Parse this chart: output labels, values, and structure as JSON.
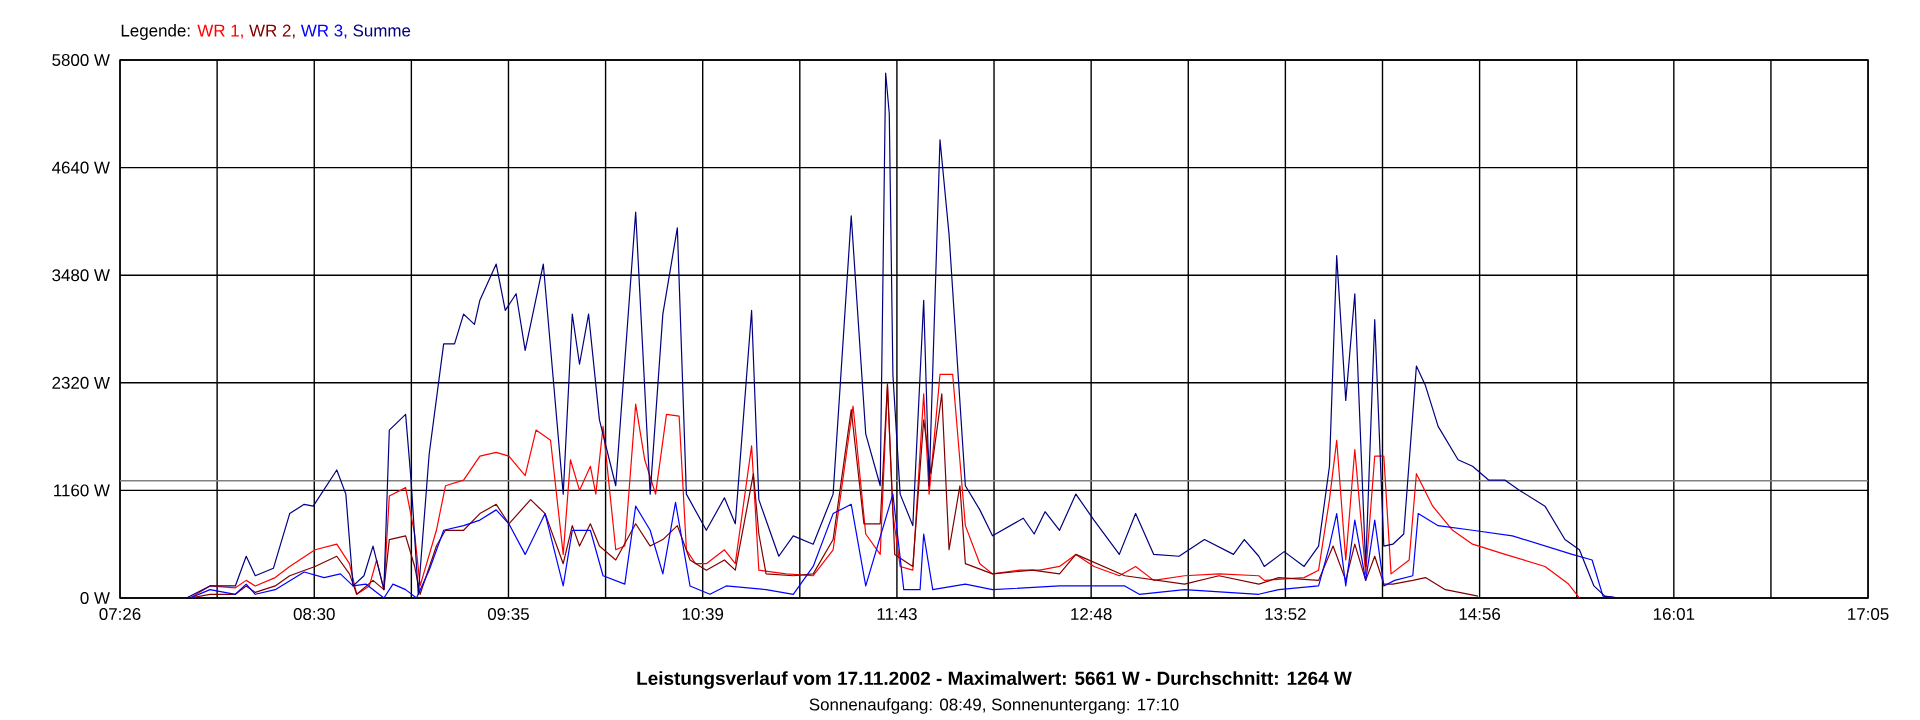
{
  "chart_data": {
    "type": "line",
    "title": "Leistungsverlauf vom 17.11.2002 - Maximalwert: 5661 W - Durchschnitt: 1264 W",
    "subtitle": "Sonnenaufgang: 08:49, Sonnenuntergang: 17:10",
    "legend_title": "Legende:",
    "legend": "top left",
    "grid": true,
    "marker": "none",
    "line_style": "solid",
    "xlim": [
      7.4333,
      17.0833
    ],
    "ylim": [
      0,
      5800
    ],
    "xticks": [
      {
        "value": 7.4333,
        "label": "07:26"
      },
      {
        "value": 7.9694,
        "label": null
      },
      {
        "value": 8.5056,
        "label": "08:30"
      },
      {
        "value": 9.0417,
        "label": null
      },
      {
        "value": 9.5778,
        "label": "09:35"
      },
      {
        "value": 10.1139,
        "label": null
      },
      {
        "value": 10.65,
        "label": "10:39"
      },
      {
        "value": 11.1861,
        "label": null
      },
      {
        "value": 11.7222,
        "label": "11:43"
      },
      {
        "value": 12.2583,
        "label": null
      },
      {
        "value": 12.7944,
        "label": "12:48"
      },
      {
        "value": 13.3306,
        "label": null
      },
      {
        "value": 13.8667,
        "label": "13:52"
      },
      {
        "value": 14.4028,
        "label": null
      },
      {
        "value": 14.9389,
        "label": "14:56"
      },
      {
        "value": 15.475,
        "label": null
      },
      {
        "value": 16.0111,
        "label": "16:01"
      },
      {
        "value": 16.5472,
        "label": null
      },
      {
        "value": 17.0833,
        "label": "17:05"
      }
    ],
    "yticks": [
      {
        "value": 0,
        "label": "0 W"
      },
      {
        "value": 1160,
        "label": "1160 W"
      },
      {
        "value": 2320,
        "label": "2320 W"
      },
      {
        "value": 3480,
        "label": "3480 W"
      },
      {
        "value": 4640,
        "label": "4640 W"
      },
      {
        "value": 5800,
        "label": "5800 W"
      }
    ],
    "ref_lines": [
      {
        "axis": "y",
        "value": 1264,
        "color": "#808080"
      }
    ],
    "series": [
      {
        "name": "WR 1,",
        "color": "#ff0000",
        "x": [
          7.82,
          7.93,
          8.07,
          8.13,
          8.18,
          8.29,
          8.37,
          8.51,
          8.63,
          8.7,
          8.74,
          8.81,
          8.85,
          8.89,
          8.92,
          9.01,
          9.06,
          9.09,
          9.18,
          9.23,
          9.33,
          9.42,
          9.51,
          9.58,
          9.67,
          9.73,
          9.81,
          9.88,
          9.92,
          9.97,
          10.03,
          10.06,
          10.1,
          10.17,
          10.22,
          10.28,
          10.33,
          10.39,
          10.45,
          10.52,
          10.56,
          10.61,
          10.67,
          10.77,
          10.83,
          10.92,
          10.96,
          11.11,
          11.26,
          11.37,
          11.48,
          11.55,
          11.63,
          11.67,
          11.7,
          11.74,
          11.81,
          11.87,
          11.9,
          11.96,
          12.03,
          12.1,
          12.18,
          12.25,
          12.4,
          12.51,
          12.62,
          12.71,
          12.81,
          12.95,
          13.04,
          13.14,
          13.31,
          13.5,
          13.72,
          13.75,
          13.97,
          14.05,
          14.11,
          14.15,
          14.2,
          14.25,
          14.31,
          14.36,
          14.41,
          14.45,
          14.55,
          14.59,
          14.68,
          14.79,
          14.9,
          15.08,
          15.3,
          15.43,
          15.49
        ],
        "values": [
          0,
          130,
          110,
          190,
          130,
          220,
          340,
          520,
          580,
          370,
          40,
          130,
          410,
          90,
          1100,
          1190,
          690,
          130,
          730,
          1210,
          1270,
          1530,
          1570,
          1530,
          1320,
          1810,
          1700,
          470,
          1490,
          1160,
          1420,
          1120,
          1850,
          520,
          560,
          2090,
          1490,
          1120,
          1980,
          1960,
          520,
          370,
          370,
          520,
          370,
          1640,
          300,
          260,
          240,
          520,
          2070,
          690,
          470,
          2290,
          910,
          340,
          300,
          2200,
          1120,
          2410,
          2410,
          780,
          370,
          260,
          300,
          300,
          340,
          470,
          340,
          240,
          340,
          190,
          240,
          260,
          240,
          190,
          220,
          300,
          1060,
          1700,
          410,
          1600,
          260,
          1530,
          1530,
          260,
          410,
          1340,
          990,
          730,
          580,
          470,
          340,
          150,
          0
        ]
      },
      {
        "name": "WR 2,",
        "color": "#800000",
        "x": [
          7.82,
          7.93,
          8.07,
          8.13,
          8.18,
          8.29,
          8.37,
          8.51,
          8.63,
          8.7,
          8.74,
          8.83,
          8.89,
          8.92,
          9.01,
          9.06,
          9.09,
          9.18,
          9.23,
          9.33,
          9.42,
          9.51,
          9.58,
          9.7,
          9.78,
          9.88,
          9.93,
          9.97,
          10.03,
          10.08,
          10.17,
          10.28,
          10.36,
          10.43,
          10.51,
          10.58,
          10.67,
          10.77,
          10.83,
          10.93,
          10.96,
          11.0,
          11.15,
          11.26,
          11.37,
          11.47,
          11.54,
          11.63,
          11.67,
          11.71,
          11.81,
          11.87,
          11.91,
          11.97,
          12.01,
          12.07,
          12.1,
          12.25,
          12.47,
          12.62,
          12.71,
          12.98,
          13.31,
          13.5,
          13.72,
          13.83,
          14.05,
          14.13,
          14.2,
          14.25,
          14.31,
          14.36,
          14.41,
          14.46,
          14.57,
          14.64,
          14.75,
          14.93
        ],
        "values": [
          0,
          40,
          40,
          130,
          60,
          130,
          240,
          340,
          450,
          260,
          40,
          190,
          90,
          630,
          670,
          340,
          40,
          560,
          730,
          730,
          910,
          1010,
          800,
          1060,
          910,
          370,
          780,
          560,
          800,
          560,
          410,
          800,
          560,
          630,
          780,
          410,
          300,
          410,
          300,
          1340,
          690,
          260,
          240,
          260,
          630,
          2030,
          800,
          800,
          2310,
          470,
          340,
          1920,
          1340,
          2200,
          520,
          1210,
          370,
          260,
          300,
          260,
          470,
          240,
          150,
          240,
          150,
          220,
          190,
          560,
          190,
          580,
          190,
          450,
          150,
          150,
          190,
          220,
          90,
          20
        ]
      },
      {
        "name": "WR 3,",
        "color": "#0000ff",
        "x": [
          7.82,
          7.93,
          8.07,
          8.13,
          8.18,
          8.29,
          8.45,
          8.56,
          8.65,
          8.72,
          8.79,
          8.89,
          8.94,
          9.01,
          9.07,
          9.14,
          9.22,
          9.33,
          9.42,
          9.51,
          9.58,
          9.67,
          9.78,
          9.88,
          9.93,
          10.03,
          10.1,
          10.22,
          10.28,
          10.36,
          10.43,
          10.5,
          10.58,
          10.69,
          10.78,
          11.0,
          11.15,
          11.26,
          11.37,
          11.47,
          11.55,
          11.7,
          11.76,
          11.85,
          11.87,
          11.92,
          12.1,
          12.25,
          12.62,
          12.98,
          13.06,
          13.31,
          13.72,
          13.83,
          14.05,
          14.11,
          14.15,
          14.2,
          14.25,
          14.31,
          14.36,
          14.41,
          14.47,
          14.57,
          14.6,
          14.71,
          14.9,
          15.12,
          15.45,
          15.56,
          15.62,
          15.71
        ],
        "values": [
          0,
          90,
          40,
          150,
          40,
          90,
          280,
          220,
          260,
          130,
          150,
          0,
          150,
          90,
          0,
          300,
          730,
          780,
          840,
          950,
          800,
          470,
          910,
          130,
          730,
          730,
          240,
          150,
          990,
          730,
          260,
          1030,
          130,
          40,
          130,
          90,
          40,
          340,
          910,
          1010,
          130,
          1120,
          90,
          90,
          690,
          90,
          150,
          90,
          130,
          130,
          40,
          90,
          40,
          90,
          130,
          560,
          910,
          130,
          840,
          190,
          840,
          130,
          190,
          240,
          910,
          780,
          730,
          670,
          470,
          410,
          20,
          0
        ]
      },
      {
        "name": "Summe",
        "color": "#000080",
        "x": [
          7.8,
          7.93,
          8.07,
          8.13,
          8.18,
          8.28,
          8.37,
          8.45,
          8.5,
          8.63,
          8.68,
          8.72,
          8.78,
          8.83,
          8.89,
          8.92,
          9.01,
          9.04,
          9.08,
          9.14,
          9.22,
          9.28,
          9.33,
          9.39,
          9.42,
          9.51,
          9.56,
          9.62,
          9.67,
          9.77,
          9.88,
          9.93,
          9.97,
          10.02,
          10.08,
          10.17,
          10.28,
          10.36,
          10.43,
          10.51,
          10.56,
          10.67,
          10.77,
          10.83,
          10.92,
          10.96,
          11.07,
          11.15,
          11.26,
          11.37,
          11.47,
          11.55,
          11.63,
          11.66,
          11.68,
          11.7,
          11.74,
          11.81,
          11.87,
          11.9,
          11.96,
          12.01,
          12.1,
          12.18,
          12.25,
          12.42,
          12.48,
          12.54,
          12.62,
          12.71,
          12.81,
          12.95,
          13.04,
          13.14,
          13.28,
          13.42,
          13.58,
          13.64,
          13.72,
          13.75,
          13.86,
          13.97,
          14.05,
          14.11,
          14.15,
          14.2,
          14.25,
          14.31,
          14.36,
          14.41,
          14.46,
          14.52,
          14.59,
          14.64,
          14.71,
          14.82,
          14.9,
          14.99,
          15.08,
          15.16,
          15.3,
          15.41,
          15.49,
          15.57,
          15.63,
          15.71
        ],
        "values": [
          0,
          130,
          130,
          450,
          240,
          320,
          910,
          1010,
          990,
          1380,
          1120,
          130,
          240,
          560,
          90,
          1810,
          1980,
          1270,
          40,
          1550,
          2740,
          2740,
          3060,
          2950,
          3210,
          3600,
          3100,
          3280,
          2670,
          3600,
          1120,
          3060,
          2520,
          3060,
          1920,
          1210,
          4160,
          1120,
          3060,
          3990,
          1120,
          730,
          1080,
          800,
          3100,
          1060,
          450,
          670,
          580,
          1120,
          4120,
          1770,
          1210,
          5660,
          5220,
          2410,
          1120,
          780,
          3210,
          1210,
          4940,
          3920,
          1210,
          950,
          670,
          860,
          690,
          930,
          730,
          1120,
          840,
          470,
          910,
          470,
          450,
          630,
          470,
          630,
          450,
          340,
          500,
          340,
          560,
          1420,
          3690,
          2130,
          3280,
          340,
          3000,
          560,
          580,
          690,
          2500,
          2290,
          1850,
          1490,
          1420,
          1270,
          1270,
          1160,
          990,
          630,
          520,
          130,
          20,
          0
        ]
      }
    ]
  }
}
